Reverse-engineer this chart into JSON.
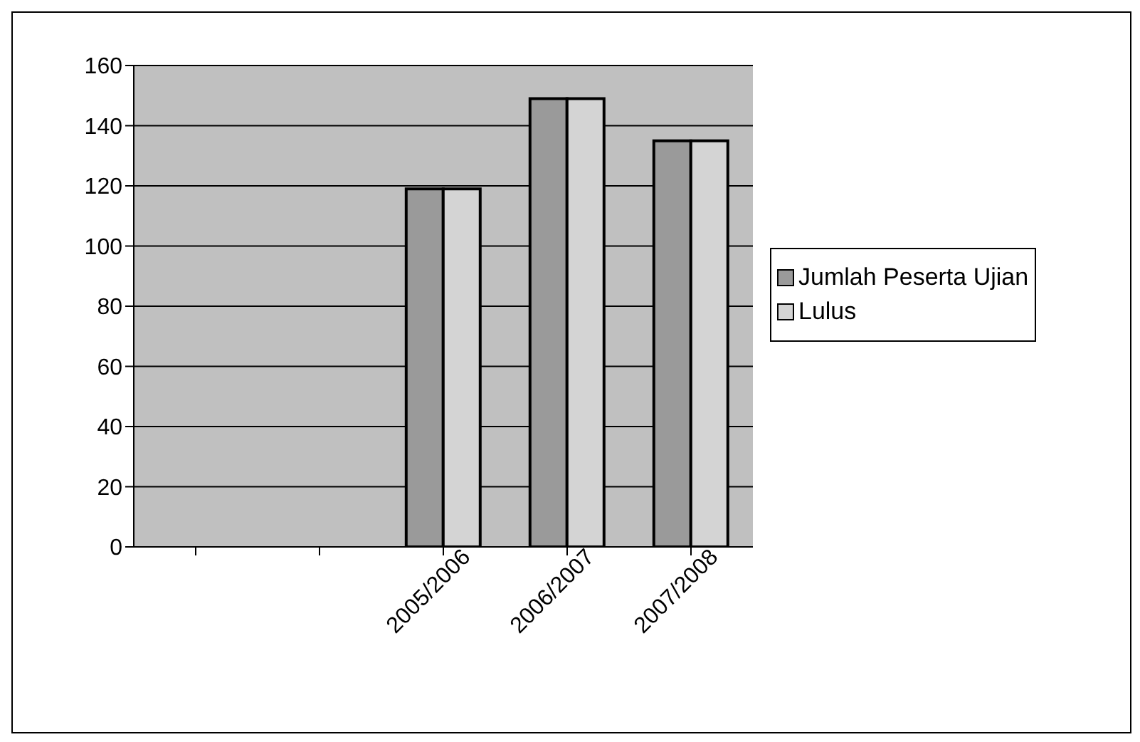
{
  "chart_data": {
    "type": "bar",
    "categories": [
      null,
      null,
      "2005/2006",
      "2006/2007",
      "2007/2008"
    ],
    "series": [
      {
        "name": "Jumlah Peserta Ujian",
        "color": "#9a9a9a",
        "values": [
          null,
          null,
          119,
          149,
          135
        ]
      },
      {
        "name": "Lulus",
        "color": "#d4d4d4",
        "values": [
          null,
          null,
          119,
          149,
          135
        ]
      }
    ],
    "ylim": [
      0,
      160
    ],
    "yticks": [
      0,
      20,
      40,
      60,
      80,
      100,
      120,
      140,
      160
    ],
    "grid": "y",
    "legend": "right"
  }
}
